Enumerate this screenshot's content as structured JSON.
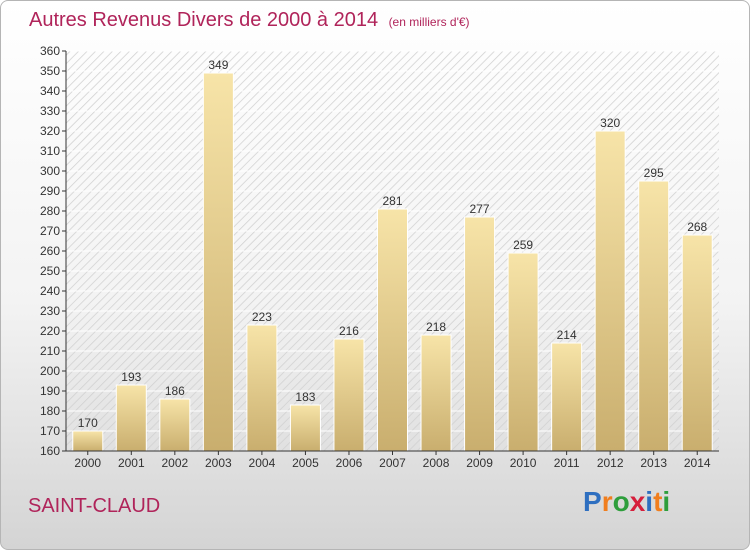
{
  "title": "Autres Revenus Divers de 2000 à 2014",
  "subtitle": "(en milliers d'€)",
  "commune": "SAINT-CLAUD",
  "logo": {
    "text": "Proxiti",
    "letters": [
      {
        "ch": "P",
        "color": "#2e6fc0"
      },
      {
        "ch": "r",
        "color": "#f07e1e"
      },
      {
        "ch": "o",
        "color": "#2e9e3c"
      },
      {
        "ch": "x",
        "color": "#d61f3c"
      },
      {
        "ch": "i",
        "color": "#2e6fc0"
      },
      {
        "ch": "t",
        "color": "#f07e1e"
      },
      {
        "ch": "i",
        "color": "#2e9e3c"
      }
    ]
  },
  "colors": {
    "title": "#b0245a",
    "bar_light": "#f7e4a8",
    "bar_dark": "#c9ae6e",
    "axis": "#333333"
  },
  "chart_data": {
    "type": "bar",
    "categories": [
      "2000",
      "2001",
      "2002",
      "2003",
      "2004",
      "2005",
      "2006",
      "2007",
      "2008",
      "2009",
      "2010",
      "2011",
      "2012",
      "2013",
      "2014"
    ],
    "values": [
      170,
      193,
      186,
      349,
      223,
      183,
      216,
      281,
      218,
      277,
      259,
      214,
      320,
      295,
      268
    ],
    "data_labels": [
      "170",
      "193",
      "186",
      "349",
      "223",
      "183",
      "216",
      "281",
      "218",
      "277",
      "259",
      "214",
      "320",
      "295",
      "268"
    ],
    "ylim": [
      160,
      360
    ],
    "yticks": [
      160,
      170,
      180,
      190,
      200,
      210,
      220,
      230,
      240,
      250,
      260,
      270,
      280,
      290,
      300,
      310,
      320,
      330,
      340,
      350,
      360
    ],
    "xlabel": "",
    "ylabel": "",
    "grid": true
  }
}
